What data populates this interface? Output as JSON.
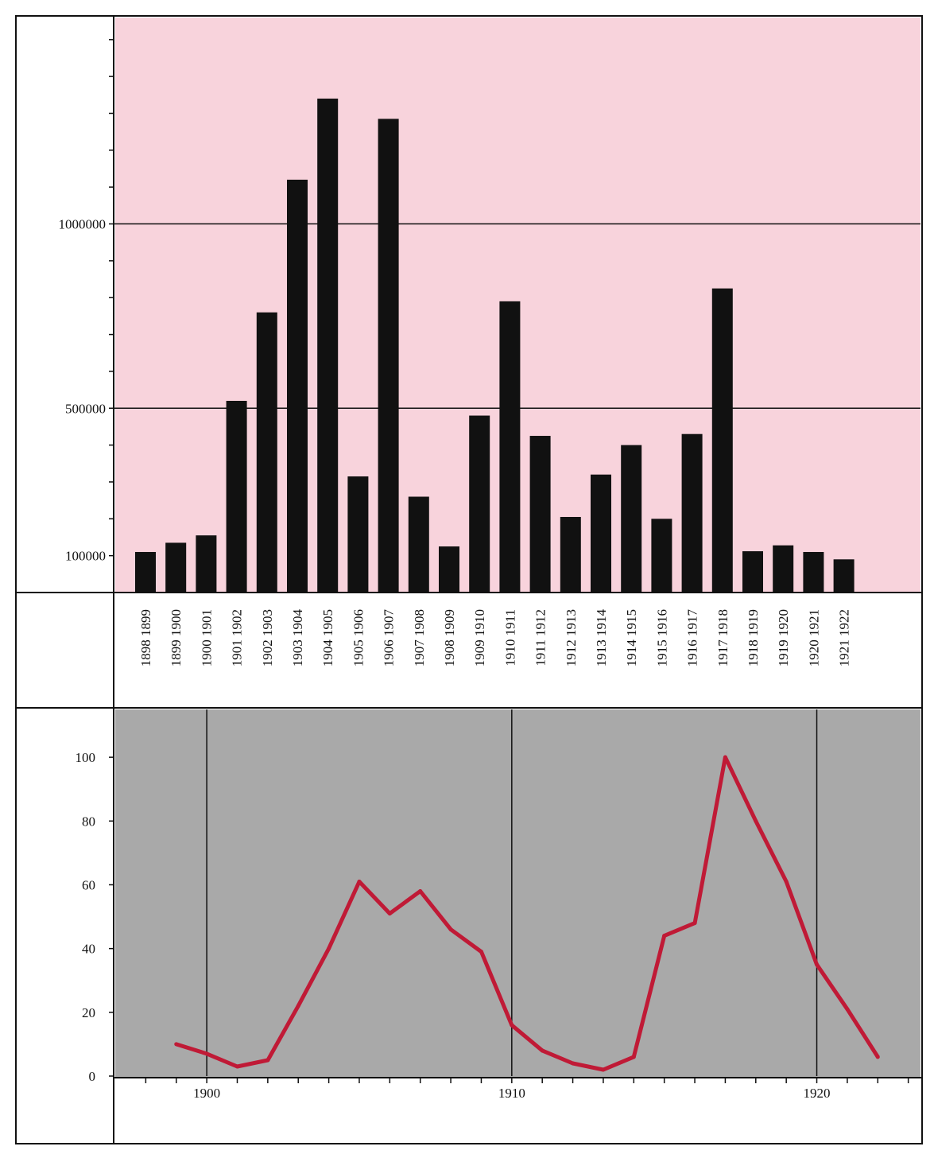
{
  "chart_data": [
    {
      "type": "bar",
      "categories": [
        "1898-1899",
        "1899-1900",
        "1900-1901",
        "1901-1902",
        "1902-1903",
        "1903-1904",
        "1904-1905",
        "1905-1906",
        "1906-1907",
        "1907-1908",
        "1908-1909",
        "1909-1910",
        "1910-1911",
        "1911-1912",
        "1912-1913",
        "1913-1914",
        "1914-1915",
        "1915-1916",
        "1916-1917",
        "1917-1918",
        "1918-1919",
        "1919-1920",
        "1920-1921",
        "1921-1922"
      ],
      "values": [
        110000,
        135000,
        155000,
        520000,
        760000,
        1120000,
        1340000,
        315000,
        1285000,
        260000,
        125000,
        480000,
        790000,
        425000,
        205000,
        320000,
        400000,
        200000,
        430000,
        825000,
        112000,
        128000,
        110000,
        90000
      ],
      "yticks": [
        "100000",
        "500000",
        "1000000"
      ],
      "ylim": [
        0,
        1560000
      ],
      "grid": "horizontal at 500000 and 1000000",
      "colors": {
        "background": "#f8d3dc",
        "bar": "#111111"
      }
    },
    {
      "type": "line",
      "x": [
        1899,
        1900,
        1901,
        1902,
        1903,
        1904,
        1905,
        1906,
        1907,
        1908,
        1909,
        1910,
        1911,
        1912,
        1913,
        1914,
        1915,
        1916,
        1917,
        1918,
        1919,
        1920,
        1921,
        1922
      ],
      "y": [
        10,
        7,
        3,
        5,
        22,
        40,
        61,
        51,
        58,
        46,
        39,
        16,
        8,
        4,
        2,
        6,
        44,
        48,
        100,
        80,
        61,
        35,
        21,
        6
      ],
      "yticks": [
        "0",
        "20",
        "40",
        "60",
        "80",
        "100"
      ],
      "xticks": [
        "1900",
        "1910",
        "1920"
      ],
      "ylim": [
        0,
        115
      ],
      "xlim": [
        1897,
        1923.4
      ],
      "grid": "vertical at 1900, 1910, 1920",
      "colors": {
        "background": "#a9a9a9",
        "line": "#c01a36"
      }
    }
  ]
}
